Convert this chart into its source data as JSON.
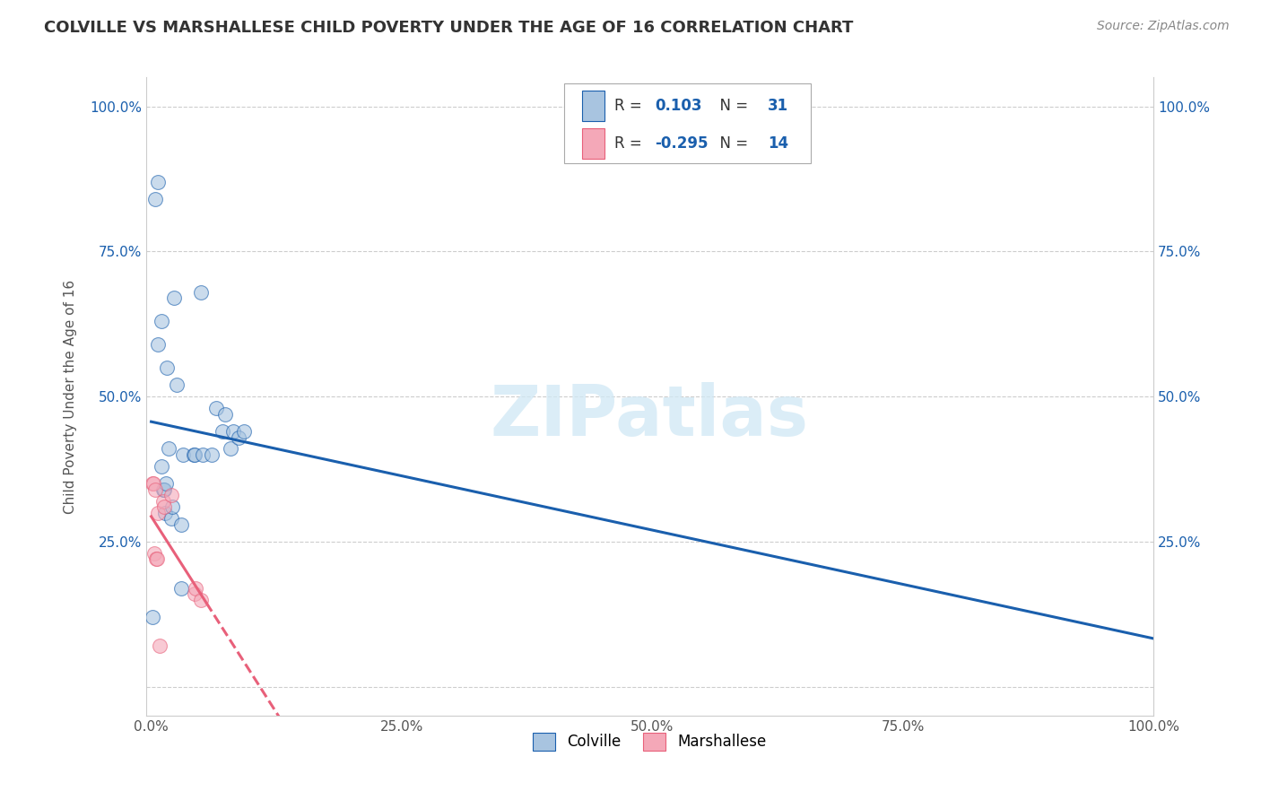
{
  "title": "COLVILLE VS MARSHALLESE CHILD POVERTY UNDER THE AGE OF 16 CORRELATION CHART",
  "source": "Source: ZipAtlas.com",
  "ylabel": "Child Poverty Under the Age of 16",
  "colville_color": "#a8c4e0",
  "marshallese_color": "#f4a8b8",
  "colville_line_color": "#1a5fad",
  "marshallese_line_color": "#e8607a",
  "colville_R": 0.103,
  "colville_N": 31,
  "marshallese_R": -0.295,
  "marshallese_N": 14,
  "background_color": "#ffffff",
  "grid_color": "#c8c8c8",
  "colville_x": [
    0.1,
    0.4,
    0.7,
    0.7,
    1.0,
    1.0,
    1.2,
    1.3,
    1.4,
    1.5,
    1.6,
    1.7,
    2.0,
    2.1,
    2.3,
    2.5,
    3.0,
    3.0,
    3.2,
    4.2,
    4.3,
    5.0,
    5.1,
    6.0,
    6.5,
    7.1,
    7.4,
    7.9,
    8.2,
    8.7,
    9.3
  ],
  "colville_y": [
    12,
    84,
    87,
    59,
    63,
    38,
    34,
    34,
    30,
    35,
    55,
    41,
    29,
    31,
    67,
    52,
    28,
    17,
    40,
    40,
    40,
    68,
    40,
    40,
    48,
    44,
    47,
    41,
    44,
    43,
    44
  ],
  "marshallese_x": [
    0.1,
    0.2,
    0.3,
    0.4,
    0.5,
    0.6,
    0.7,
    0.8,
    1.2,
    1.3,
    2.0,
    4.3,
    4.4,
    5.0
  ],
  "marshallese_y": [
    35,
    35,
    23,
    34,
    22,
    22,
    30,
    7,
    32,
    31,
    33,
    16,
    17,
    15
  ],
  "xlim": [
    -0.5,
    100
  ],
  "ylim": [
    -5,
    105
  ],
  "xticks": [
    0,
    25,
    50,
    75,
    100
  ],
  "yticks": [
    0,
    25,
    50,
    75,
    100
  ],
  "xticklabels": [
    "0.0%",
    "25.0%",
    "50.0%",
    "75.0%",
    "100.0%"
  ],
  "yticklabels": [
    "",
    "25.0%",
    "50.0%",
    "75.0%",
    "100.0%"
  ],
  "watermark": "ZIPatlas",
  "marker_size": 130,
  "marker_alpha": 0.6,
  "line_width": 2.2,
  "marshallese_solid_end": 5.5,
  "marshallese_dashed_end": 100
}
